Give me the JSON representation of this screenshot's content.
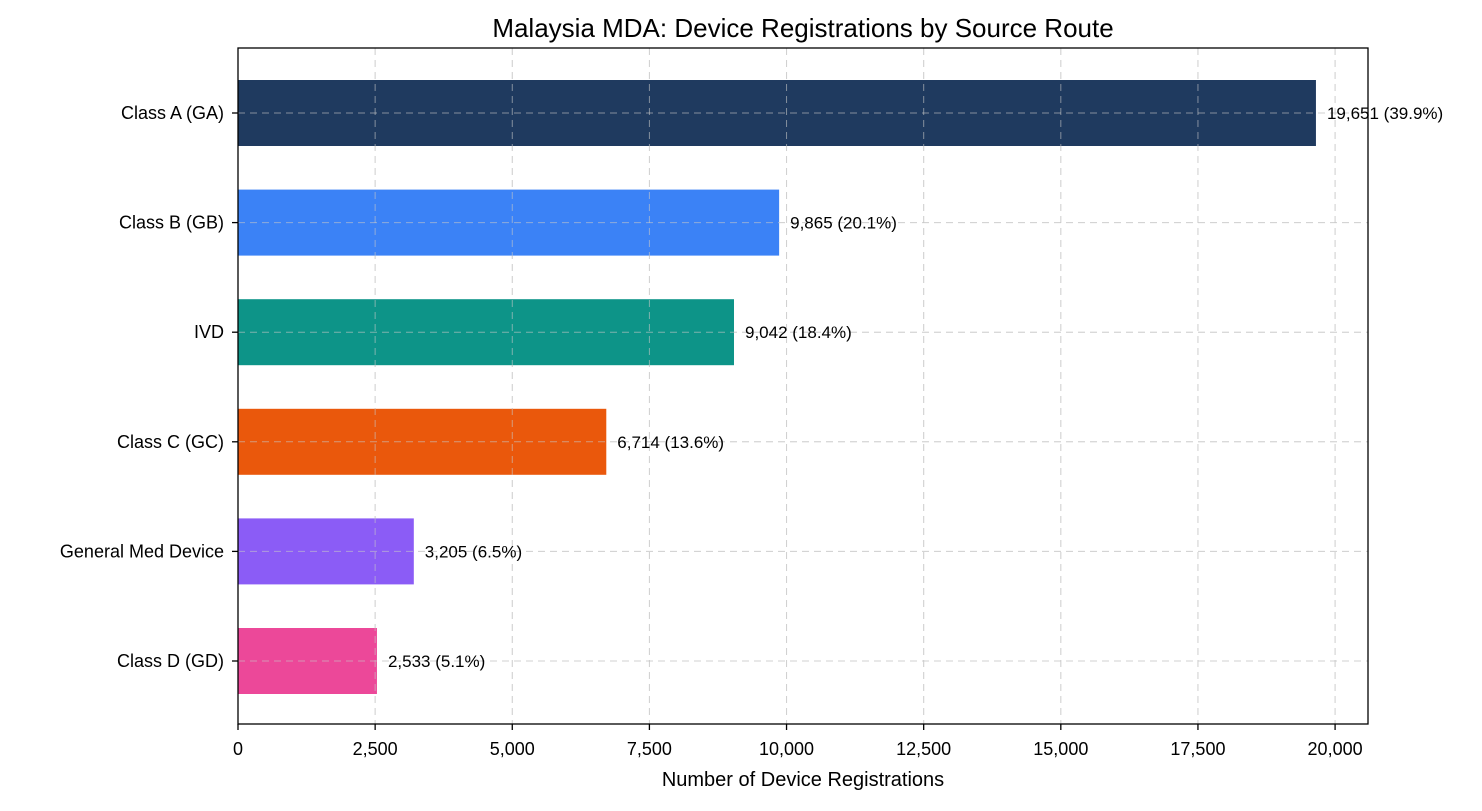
{
  "chart_data": {
    "type": "bar",
    "orientation": "horizontal",
    "title": "Malaysia MDA: Device Registrations by Source Route",
    "xlabel": "Number of Device Registrations",
    "ylabel": "",
    "xlim": [
      0,
      20600
    ],
    "xticks": [
      0,
      2500,
      5000,
      7500,
      10000,
      12500,
      15000,
      17500,
      20000
    ],
    "xtick_labels": [
      "0",
      "2,500",
      "5,000",
      "7,500",
      "10,000",
      "12,500",
      "15,000",
      "17,500",
      "20,000"
    ],
    "grid": true,
    "categories": [
      "Class A (GA)",
      "Class B (GB)",
      "IVD",
      "Class C (GC)",
      "General Med Device",
      "Class D (GD)"
    ],
    "values": [
      19651,
      9865,
      9042,
      6714,
      3205,
      2533
    ],
    "data_labels": [
      "19,651 (39.9%)",
      "9,865 (20.1%)",
      "9,042 (18.4%)",
      "6,714 (13.6%)",
      "3,205 (6.5%)",
      "2,533 (5.1%)"
    ],
    "colors": [
      "#1f3a5f",
      "#3b82f6",
      "#0d9488",
      "#ea580c",
      "#8b5cf6",
      "#ec4899"
    ]
  }
}
